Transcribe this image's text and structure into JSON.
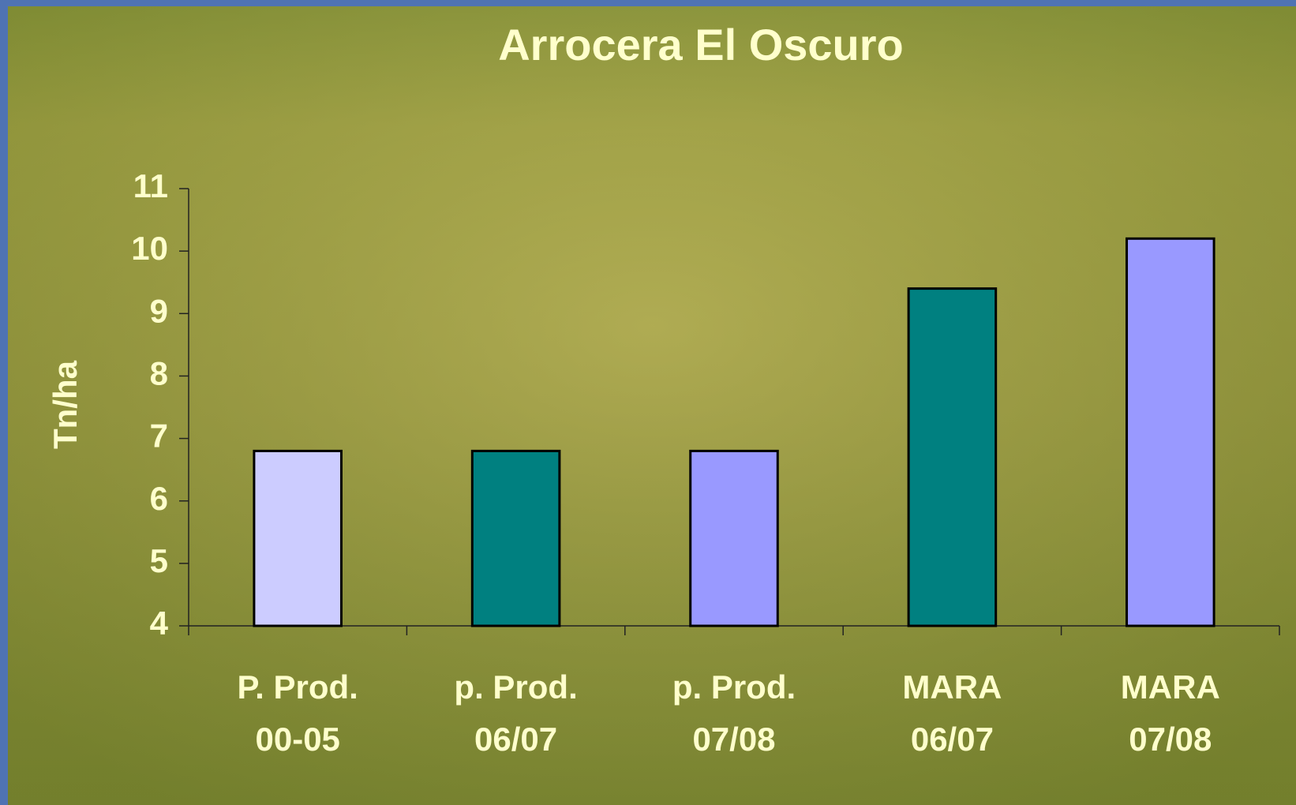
{
  "chart_data": {
    "type": "bar",
    "title": "Arrocera El Oscuro",
    "y_label": "Tn/ha",
    "categories": [
      [
        "P. Prod.",
        "00-05"
      ],
      [
        "p. Prod.",
        "06/07"
      ],
      [
        "p. Prod.",
        "07/08"
      ],
      [
        "MARA",
        "06/07"
      ],
      [
        "MARA",
        "07/08"
      ]
    ],
    "values": [
      6.8,
      6.8,
      6.8,
      9.4,
      10.2
    ],
    "colors": [
      "#ccccff",
      "#008080",
      "#9999ff",
      "#008080",
      "#9999ff"
    ],
    "ylim": [
      4,
      11
    ],
    "yticks": [
      4,
      5,
      6,
      7,
      8,
      9,
      10,
      11
    ],
    "grid": false
  }
}
